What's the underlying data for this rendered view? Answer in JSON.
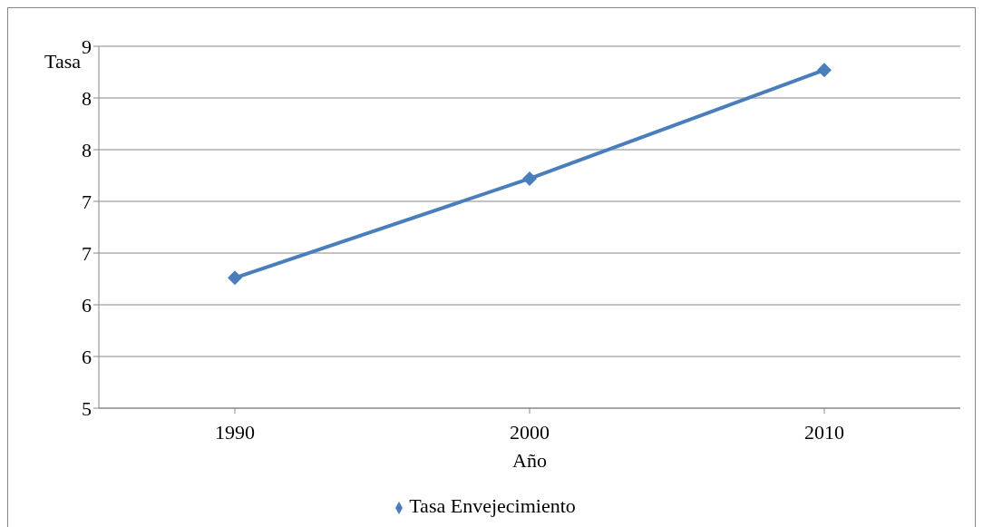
{
  "chart_data": {
    "type": "line",
    "xlabel": "Año",
    "ylabel": "Tasa",
    "categories": [
      "1990",
      "2000",
      "2010"
    ],
    "series": [
      {
        "name": "Tasa Envejecimiento",
        "color": "#4a7ebb",
        "values": [
          6.26,
          7.22,
          8.27
        ]
      }
    ],
    "ylim": [
      5,
      8.5
    ],
    "yticks": [
      {
        "value": 5,
        "label": "5"
      },
      {
        "value": 5.5,
        "label": "6"
      },
      {
        "value": 6,
        "label": "6"
      },
      {
        "value": 6.5,
        "label": "7"
      },
      {
        "value": 7,
        "label": "7"
      },
      {
        "value": 7.5,
        "label": "8"
      },
      {
        "value": 8,
        "label": "8"
      },
      {
        "value": 8.5,
        "label": "9"
      }
    ],
    "grid": "y",
    "legend": "bottom",
    "marker": "diamond",
    "line_style": "solid"
  }
}
